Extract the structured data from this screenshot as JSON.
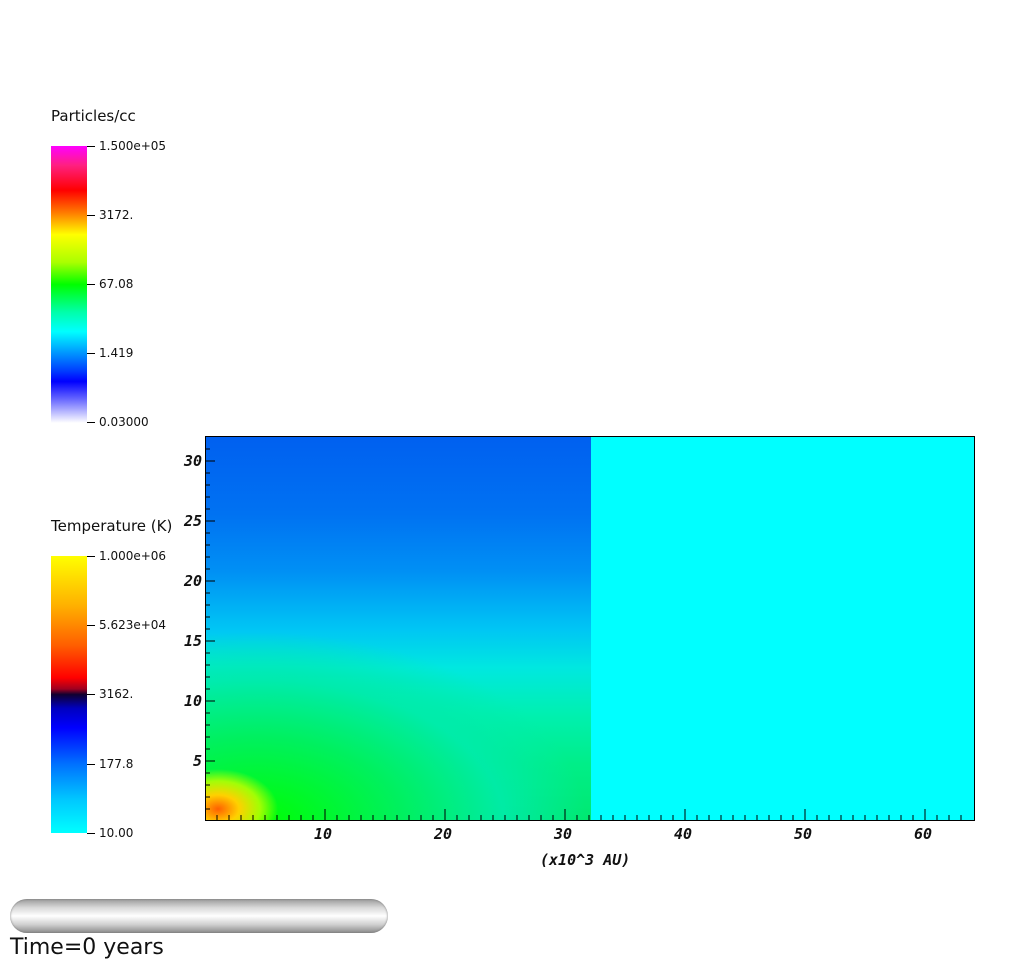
{
  "density_legend": {
    "title": "Particles/cc",
    "ticks": [
      "1.500e+05",
      "3172.",
      "67.08",
      "1.419",
      "0.03000"
    ]
  },
  "temperature_legend": {
    "title": "Temperature (K)",
    "ticks": [
      "1.000e+06",
      "5.623e+04",
      "3162.",
      "177.8",
      "10.00"
    ]
  },
  "plot": {
    "y_ticks": [
      "30",
      "25",
      "20",
      "15",
      "10",
      "5"
    ],
    "x_ticks": [
      "10",
      "20",
      "30",
      "40",
      "50",
      "60"
    ],
    "x_label": "(x10^3 AU)",
    "fill_color": "#00ffff"
  },
  "animation": {
    "progress": 0,
    "time_label": "Time=0 years"
  }
}
